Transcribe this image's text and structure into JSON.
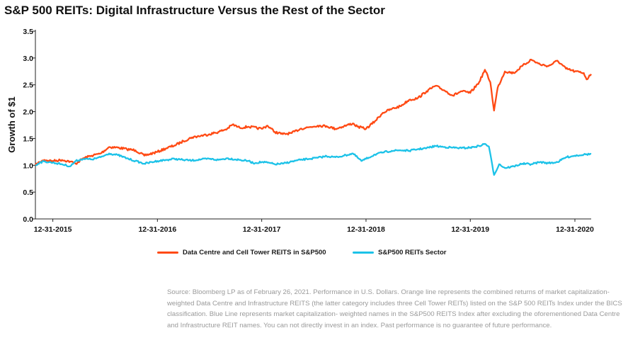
{
  "title": "S&P 500 REITs: Digital Infrastructure Versus the Rest of the Sector",
  "colors": {
    "orange": "#ff4a14",
    "blue": "#1cc2e8",
    "axis": "#222222"
  },
  "chart_data": {
    "type": "line",
    "title": "S&P 500 REITs: Digital Infrastructure Versus the Rest of the Sector",
    "xlabel": "",
    "ylabel": "Growth of $1",
    "ylim": [
      0.0,
      3.5
    ],
    "yticks": [
      "0.0",
      "0.5",
      "1.0",
      "1.5",
      "2.0",
      "2.5",
      "3.0",
      "3.5"
    ],
    "xlim": [
      "2015-10-31",
      "2021-02-26"
    ],
    "xticks": [
      "12-31-2015",
      "12-31-2016",
      "12-31-2017",
      "12-31-2018",
      "12-31-2019",
      "12-31-2020"
    ],
    "grid": false,
    "legend_position": "bottom",
    "series": [
      {
        "name": "Data Centre and Cell Tower REITS in S&P500",
        "color": "#ff4a14",
        "points": [
          [
            "2015-10-31",
            1.0
          ],
          [
            "2015-11-15",
            1.06
          ],
          [
            "2015-12-01",
            1.1
          ],
          [
            "2015-12-31",
            1.08
          ],
          [
            "2016-02-01",
            1.1
          ],
          [
            "2016-03-01",
            1.07
          ],
          [
            "2016-03-20",
            1.03
          ],
          [
            "2016-04-15",
            1.13
          ],
          [
            "2016-05-15",
            1.18
          ],
          [
            "2016-06-15",
            1.22
          ],
          [
            "2016-07-15",
            1.34
          ],
          [
            "2016-08-15",
            1.33
          ],
          [
            "2016-09-15",
            1.3
          ],
          [
            "2016-10-15",
            1.28
          ],
          [
            "2016-11-15",
            1.18
          ],
          [
            "2016-12-31",
            1.25
          ],
          [
            "2017-02-01",
            1.32
          ],
          [
            "2017-03-01",
            1.37
          ],
          [
            "2017-04-01",
            1.45
          ],
          [
            "2017-05-01",
            1.52
          ],
          [
            "2017-06-01",
            1.55
          ],
          [
            "2017-07-01",
            1.58
          ],
          [
            "2017-08-01",
            1.62
          ],
          [
            "2017-09-01",
            1.68
          ],
          [
            "2017-09-20",
            1.76
          ],
          [
            "2017-10-15",
            1.7
          ],
          [
            "2017-11-15",
            1.72
          ],
          [
            "2017-12-31",
            1.68
          ],
          [
            "2018-01-20",
            1.74
          ],
          [
            "2018-02-15",
            1.62
          ],
          [
            "2018-03-15",
            1.58
          ],
          [
            "2018-04-15",
            1.6
          ],
          [
            "2018-05-15",
            1.68
          ],
          [
            "2018-06-15",
            1.71
          ],
          [
            "2018-07-15",
            1.74
          ],
          [
            "2018-08-15",
            1.73
          ],
          [
            "2018-09-15",
            1.68
          ],
          [
            "2018-10-15",
            1.73
          ],
          [
            "2018-11-15",
            1.78
          ],
          [
            "2018-12-01",
            1.72
          ],
          [
            "2018-12-31",
            1.68
          ],
          [
            "2019-01-31",
            1.82
          ],
          [
            "2019-02-28",
            1.98
          ],
          [
            "2019-03-31",
            2.05
          ],
          [
            "2019-04-30",
            2.1
          ],
          [
            "2019-05-31",
            2.22
          ],
          [
            "2019-06-30",
            2.25
          ],
          [
            "2019-07-31",
            2.38
          ],
          [
            "2019-08-31",
            2.48
          ],
          [
            "2019-09-30",
            2.4
          ],
          [
            "2019-10-31",
            2.3
          ],
          [
            "2019-11-30",
            2.38
          ],
          [
            "2019-12-31",
            2.35
          ],
          [
            "2020-01-31",
            2.55
          ],
          [
            "2020-02-20",
            2.78
          ],
          [
            "2020-03-10",
            2.55
          ],
          [
            "2020-03-23",
            2.02
          ],
          [
            "2020-04-05",
            2.45
          ],
          [
            "2020-04-30",
            2.75
          ],
          [
            "2020-05-31",
            2.72
          ],
          [
            "2020-06-30",
            2.85
          ],
          [
            "2020-07-31",
            2.97
          ],
          [
            "2020-08-31",
            2.88
          ],
          [
            "2020-09-30",
            2.85
          ],
          [
            "2020-10-31",
            2.95
          ],
          [
            "2020-11-30",
            2.8
          ],
          [
            "2020-12-31",
            2.75
          ],
          [
            "2021-01-31",
            2.72
          ],
          [
            "2021-02-10",
            2.6
          ],
          [
            "2021-02-26",
            2.7
          ]
        ]
      },
      {
        "name": "S&P500 REITs Sector",
        "color": "#1cc2e8",
        "points": [
          [
            "2015-10-31",
            1.0
          ],
          [
            "2015-11-15",
            1.05
          ],
          [
            "2015-12-01",
            1.07
          ],
          [
            "2015-12-31",
            1.05
          ],
          [
            "2016-02-01",
            1.02
          ],
          [
            "2016-03-01",
            0.98
          ],
          [
            "2016-03-20",
            1.08
          ],
          [
            "2016-04-15",
            1.12
          ],
          [
            "2016-05-15",
            1.11
          ],
          [
            "2016-06-15",
            1.15
          ],
          [
            "2016-07-15",
            1.22
          ],
          [
            "2016-08-15",
            1.19
          ],
          [
            "2016-09-15",
            1.13
          ],
          [
            "2016-10-15",
            1.08
          ],
          [
            "2016-11-15",
            1.03
          ],
          [
            "2016-12-31",
            1.08
          ],
          [
            "2017-02-01",
            1.1
          ],
          [
            "2017-03-01",
            1.12
          ],
          [
            "2017-04-01",
            1.1
          ],
          [
            "2017-05-01",
            1.09
          ],
          [
            "2017-06-01",
            1.11
          ],
          [
            "2017-07-01",
            1.12
          ],
          [
            "2017-08-01",
            1.1
          ],
          [
            "2017-09-01",
            1.13
          ],
          [
            "2017-10-15",
            1.1
          ],
          [
            "2017-11-15",
            1.08
          ],
          [
            "2017-12-01",
            1.04
          ],
          [
            "2017-12-31",
            1.06
          ],
          [
            "2018-01-20",
            1.05
          ],
          [
            "2018-02-15",
            1.02
          ],
          [
            "2018-03-15",
            1.03
          ],
          [
            "2018-04-15",
            1.07
          ],
          [
            "2018-05-15",
            1.1
          ],
          [
            "2018-06-15",
            1.12
          ],
          [
            "2018-07-15",
            1.14
          ],
          [
            "2018-08-15",
            1.17
          ],
          [
            "2018-09-15",
            1.15
          ],
          [
            "2018-10-15",
            1.18
          ],
          [
            "2018-11-15",
            1.22
          ],
          [
            "2018-12-15",
            1.08
          ],
          [
            "2018-12-31",
            1.12
          ],
          [
            "2019-01-31",
            1.2
          ],
          [
            "2019-02-28",
            1.24
          ],
          [
            "2019-03-31",
            1.27
          ],
          [
            "2019-04-30",
            1.28
          ],
          [
            "2019-05-31",
            1.27
          ],
          [
            "2019-06-30",
            1.3
          ],
          [
            "2019-07-31",
            1.32
          ],
          [
            "2019-08-31",
            1.36
          ],
          [
            "2019-09-30",
            1.34
          ],
          [
            "2019-10-31",
            1.33
          ],
          [
            "2019-11-30",
            1.32
          ],
          [
            "2019-12-31",
            1.33
          ],
          [
            "2020-01-31",
            1.36
          ],
          [
            "2020-02-20",
            1.4
          ],
          [
            "2020-03-05",
            1.35
          ],
          [
            "2020-03-23",
            0.82
          ],
          [
            "2020-04-10",
            1.02
          ],
          [
            "2020-04-30",
            0.95
          ],
          [
            "2020-05-31",
            0.98
          ],
          [
            "2020-06-30",
            1.03
          ],
          [
            "2020-07-31",
            1.02
          ],
          [
            "2020-08-31",
            1.06
          ],
          [
            "2020-09-30",
            1.04
          ],
          [
            "2020-10-31",
            1.06
          ],
          [
            "2020-11-30",
            1.15
          ],
          [
            "2020-12-31",
            1.18
          ],
          [
            "2021-01-31",
            1.2
          ],
          [
            "2021-02-26",
            1.21
          ]
        ]
      }
    ]
  },
  "source_text": "Source: Bloomberg LP as of February 26, 2021. Performance in U.S. Dollars. Orange line represents the combined returns of market capitalization- weighted Data Centre and Infrastructure REITS (the latter category includes three Cell Tower REITs) listed on the S&P 500 REITs Index under the BICS classification. Blue Line represents market capitalization- weighted names in the S&P500 REITS Index after excluding the oforementioned Data Centre and Infrastructure REIT names. You can not directly invest in an index. Past performance is no guarantee of future performance."
}
